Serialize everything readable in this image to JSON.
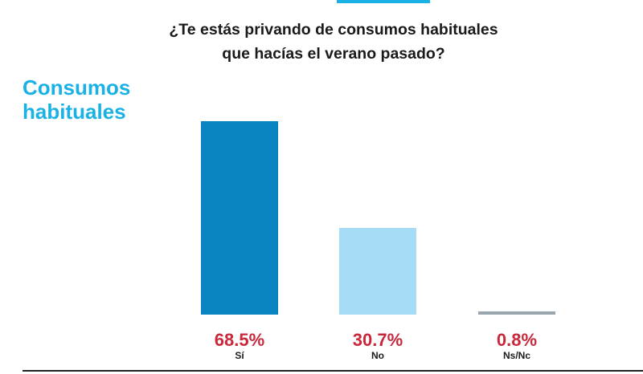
{
  "colors": {
    "accent": "#1ab2e5",
    "value_text": "#c8283a",
    "category_text": "#1a1a1a"
  },
  "header": {
    "question_line1": "¿Te estás privando de consumos habituales",
    "question_line2": "que hacías el verano pasado?"
  },
  "section": {
    "title_line1": "Consumos",
    "title_line2": "habituales"
  },
  "chart_data": {
    "type": "bar",
    "title": "¿Te estás privando de consumos habituales que hacías el verano pasado?",
    "categories": [
      "Sí",
      "No",
      "Ns/Nc"
    ],
    "values": [
      68.5,
      30.7,
      0.8
    ],
    "value_labels": [
      "68.5%",
      "30.7%",
      "0.8%"
    ],
    "bar_colors": [
      "#0a85c2",
      "#a6dcf5",
      "#9aa6ad"
    ],
    "ylim": [
      0,
      68.5
    ],
    "xlabel": "",
    "ylabel": "",
    "grid": false
  }
}
